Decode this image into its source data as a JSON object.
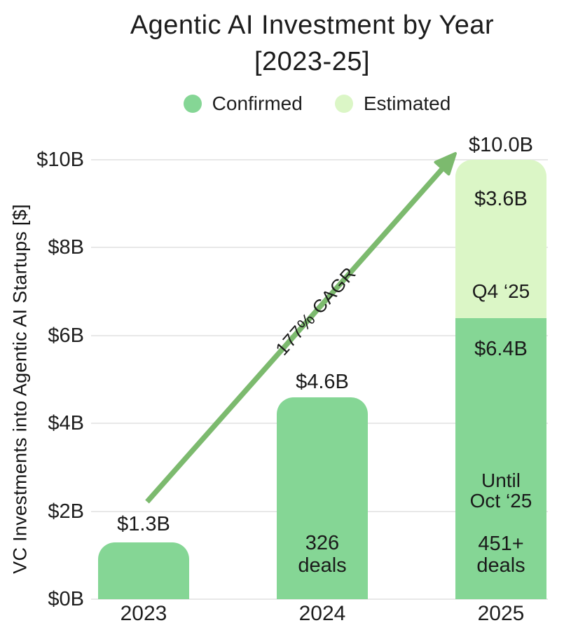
{
  "title": {
    "line1": "Agentic AI Investment by Year",
    "line2": "[2023-25]"
  },
  "legend": {
    "items": [
      {
        "label": "Confirmed"
      },
      {
        "label": "Estimated"
      }
    ]
  },
  "y_axis": {
    "title": "VC Investments into Agentic AI Startups [$]",
    "ticks": [
      "$10B",
      "$8B",
      "$6B",
      "$4B",
      "$2B",
      "$0B"
    ],
    "tick_values": [
      10,
      8,
      6,
      4,
      2,
      0
    ]
  },
  "annotation": {
    "cagr_label": "177% CAGR"
  },
  "colors": {
    "confirmed": "#85d695",
    "estimated": "#dbf6c6",
    "arrow": "#7cba6e",
    "gridline": "#e8e8e8"
  },
  "chart_data": {
    "type": "bar",
    "stacked": true,
    "title": "Agentic AI Investment by Year [2023-25]",
    "ylabel": "VC Investments into Agentic AI Startups [$]",
    "unit": "USD billions",
    "ylim": [
      0,
      10
    ],
    "grid": "horizontal",
    "legend_position": "top",
    "categories": [
      "2023",
      "2024",
      "2025"
    ],
    "series": [
      {
        "name": "Confirmed",
        "values": [
          1.3,
          4.6,
          6.4
        ]
      },
      {
        "name": "Estimated",
        "values": [
          0,
          0,
          3.6
        ]
      }
    ],
    "growth_annotation": "177% CAGR",
    "bars": [
      {
        "category": "2023",
        "confirmed": 1.3,
        "estimated": 0,
        "total_label": "$1.3B"
      },
      {
        "category": "2024",
        "confirmed": 4.6,
        "estimated": 0,
        "total_label": "$4.6B",
        "inside_labels": {
          "deals_line1": "326",
          "deals_line2": "deals"
        }
      },
      {
        "category": "2025",
        "confirmed": 6.4,
        "estimated": 3.6,
        "total_label": "$10.0B",
        "estimated_labels": {
          "value": "$3.6B",
          "period": "Q4 ‘25"
        },
        "confirmed_labels": {
          "value": "$6.4B",
          "period_line1": "Until",
          "period_line2": "Oct ‘25",
          "deals_line1": "451+",
          "deals_line2": "deals"
        }
      }
    ]
  }
}
